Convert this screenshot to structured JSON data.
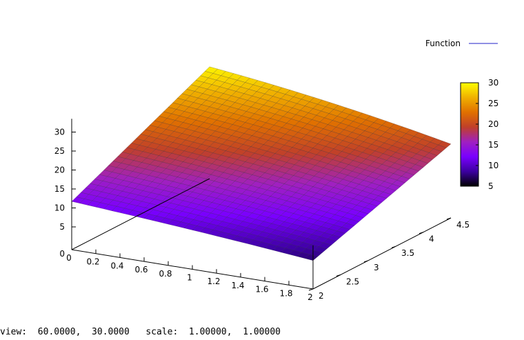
{
  "chart_data": {
    "type": "surface3d",
    "legend": {
      "label": "Function",
      "line_color": "#1f1fc8",
      "placement": "top-right"
    },
    "x_ticks": [
      "0",
      "0.2",
      "0.4",
      "0.6",
      "0.8",
      "1",
      "1.2",
      "1.4",
      "1.6",
      "1.8",
      "2"
    ],
    "y_ticks": [
      "2",
      "2.5",
      "3",
      "3.5",
      "4",
      "4.5"
    ],
    "z_ticks": [
      "5",
      "10",
      "15",
      "20",
      "25",
      "30"
    ],
    "colorbar": {
      "min": 5,
      "max": 30,
      "ticks": [
        "5",
        "10",
        "15",
        "20",
        "25",
        "30"
      ],
      "palette": [
        "#000000",
        "#3c00a0",
        "#7a00ff",
        "#a020c0",
        "#c0402a",
        "#e07000",
        "#f0b000",
        "#ffff00"
      ]
    },
    "xlim": [
      0,
      2
    ],
    "ylim": [
      2,
      4.5
    ],
    "zlim": [
      5,
      30
    ],
    "corner_values": {
      "x0_y2": 12.7,
      "x2_y2": 7.5,
      "x0_y4_5": 29.5,
      "x2_y4_5": 19.5
    },
    "grid": false,
    "view": {
      "rot_x": 60,
      "rot_z": 30,
      "scale": 1,
      "scale_z": 1
    }
  },
  "status_bar": {
    "text": "view:  60.0000,  30.0000   scale:  1.00000,  1.00000"
  }
}
